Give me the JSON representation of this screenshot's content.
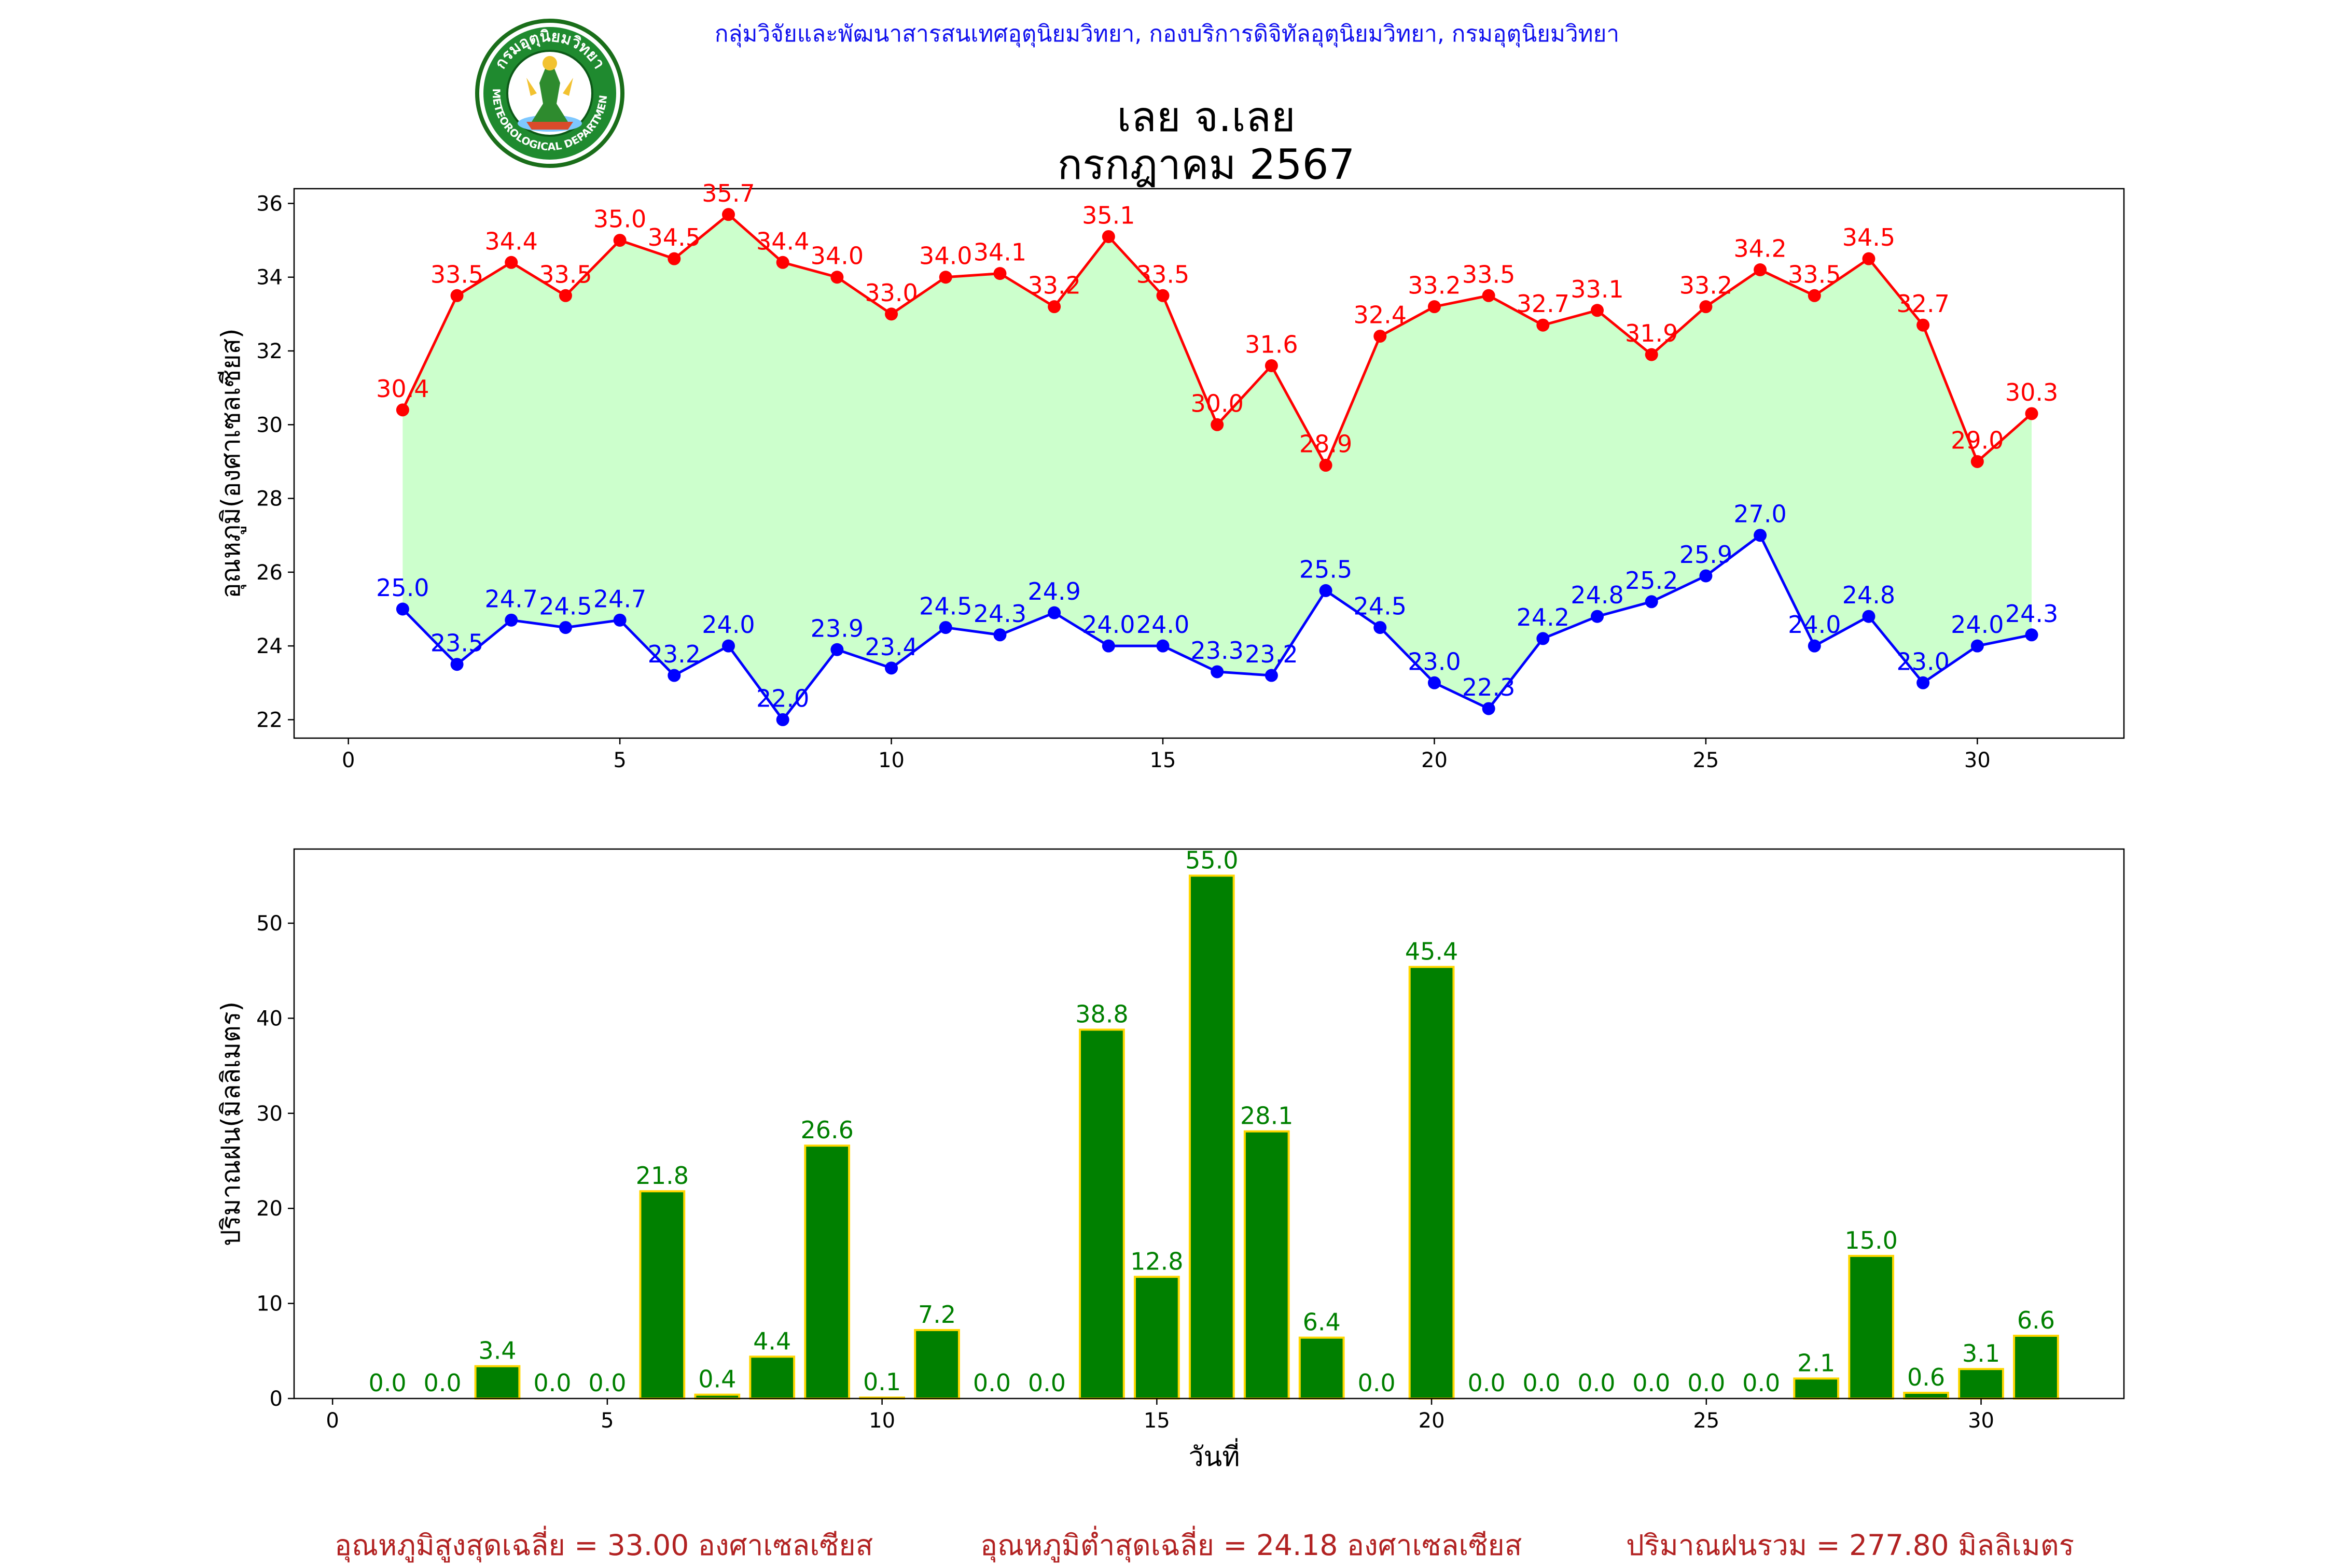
{
  "header": {
    "org": "กลุ่มวิจัยและพัฒนาสารสนเทศอุตุนิยมวิทยา, กองบริการดิจิทัลอุตุนิยมวิทยา, กรมอุตุนิยมวิทยา",
    "title_line1": "เลย จ.เลย",
    "title_line2": "กรกฎาคม 2567",
    "logo": {
      "icon": "meteorological-department-seal",
      "text_top": "กรมอุตุนิยมวิทยา",
      "text_bottom": "METEOROLOGICAL DEPARTMENT"
    }
  },
  "footer": {
    "avg_max": "อุณหภูมิสูงสุดเฉลี่ย = 33.00 องศาเซลเซียส",
    "avg_min": "อุณหภูมิต่ำสุดเฉลี่ย = 24.18 องศาเซลเซียส",
    "total_rain": "ปริมาณฝนรวม = 277.80 มิลลิเมตร"
  },
  "chart_data": [
    {
      "type": "line",
      "ylabel": "อุณหภูมิ(องศาเซลเซียส)",
      "x": [
        1,
        2,
        3,
        4,
        5,
        6,
        7,
        8,
        9,
        10,
        11,
        12,
        13,
        14,
        15,
        16,
        17,
        18,
        19,
        20,
        21,
        22,
        23,
        24,
        25,
        26,
        27,
        28,
        29,
        30,
        31
      ],
      "xlim": [
        -1,
        32.7
      ],
      "ylim": [
        21.5,
        36.4
      ],
      "xticks": [
        0,
        5,
        10,
        15,
        20,
        25,
        30
      ],
      "yticks": [
        22,
        24,
        26,
        28,
        30,
        32,
        34,
        36
      ],
      "fill_between": "#ccffcc",
      "series": [
        {
          "color": "#ff0000",
          "values": [
            30.4,
            33.5,
            34.4,
            33.5,
            35.0,
            34.5,
            35.7,
            34.4,
            34.0,
            33.0,
            34.0,
            34.1,
            33.2,
            35.1,
            33.5,
            30.0,
            31.6,
            28.9,
            32.4,
            33.2,
            33.5,
            32.7,
            33.1,
            31.9,
            33.2,
            34.2,
            33.5,
            34.5,
            32.7,
            29.0,
            30.3
          ]
        },
        {
          "color": "#0000ff",
          "values": [
            25.0,
            23.5,
            24.7,
            24.5,
            24.7,
            23.2,
            24.0,
            22.0,
            23.9,
            23.4,
            24.5,
            24.3,
            24.9,
            24.0,
            24.0,
            23.3,
            23.2,
            25.5,
            24.5,
            23.0,
            22.3,
            24.2,
            24.8,
            25.2,
            25.9,
            27.0,
            24.0,
            24.8,
            23.0,
            24.0,
            24.3
          ]
        }
      ]
    },
    {
      "type": "bar",
      "xlabel": "วันที่",
      "ylabel": "ปริมาณฝน(มิลลิเมตร)",
      "categories": [
        1,
        2,
        3,
        4,
        5,
        6,
        7,
        8,
        9,
        10,
        11,
        12,
        13,
        14,
        15,
        16,
        17,
        18,
        19,
        20,
        21,
        22,
        23,
        24,
        25,
        26,
        27,
        28,
        29,
        30,
        31
      ],
      "values": [
        0.0,
        0.0,
        3.4,
        0.0,
        0.0,
        21.8,
        0.4,
        4.4,
        26.6,
        0.1,
        7.2,
        0.0,
        0.0,
        38.8,
        12.8,
        55.0,
        28.1,
        6.4,
        0.0,
        45.4,
        0.0,
        0.0,
        0.0,
        0.0,
        0.0,
        0.0,
        2.1,
        15.0,
        0.6,
        3.1,
        6.6
      ],
      "xlim": [
        -0.7,
        32.6
      ],
      "ylim": [
        0,
        57.8
      ],
      "xticks": [
        0,
        5,
        10,
        15,
        20,
        25,
        30
      ],
      "yticks": [
        0,
        10,
        20,
        30,
        40,
        50
      ],
      "bar_color": "#008000",
      "bar_edge": "#ffd700",
      "label_color": "#008000"
    }
  ]
}
